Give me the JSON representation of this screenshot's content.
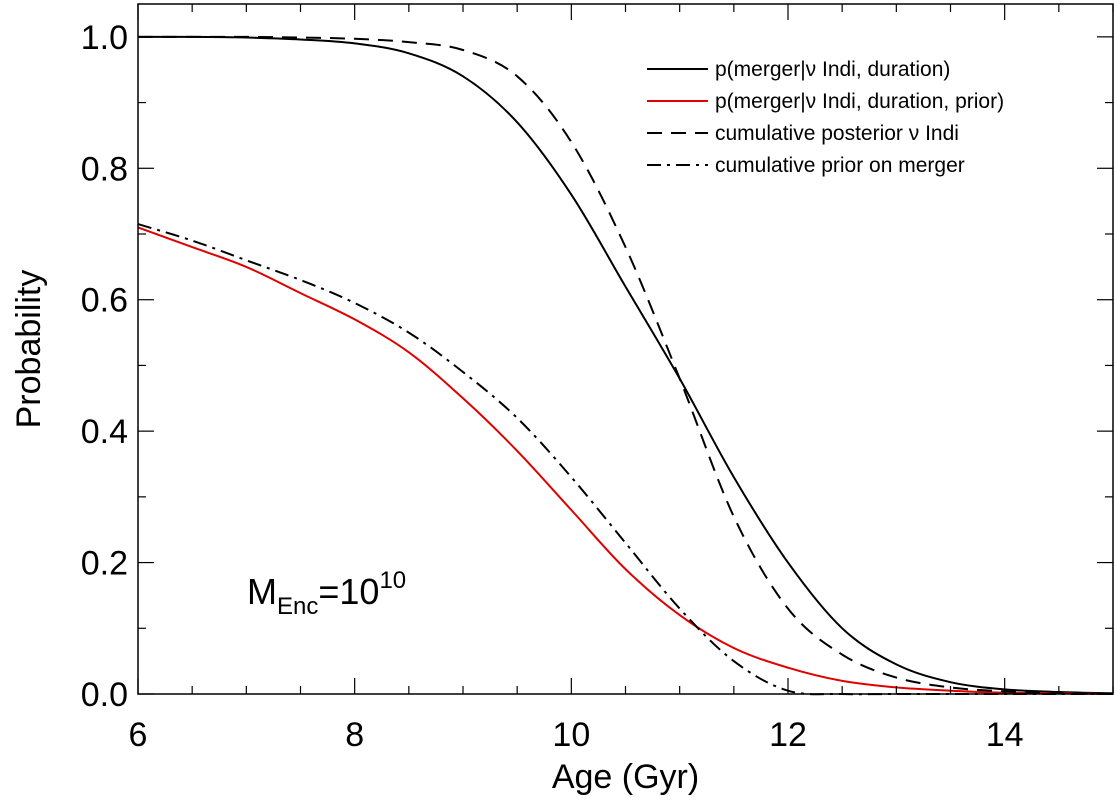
{
  "chart_data": {
    "type": "line",
    "xlabel": "Age (Gyr)",
    "ylabel": "Probability",
    "xlim": [
      6,
      15
    ],
    "ylim": [
      0,
      1.05
    ],
    "x_ticks": [
      6,
      8,
      10,
      12,
      14
    ],
    "x_tick_labels": [
      "6",
      "8",
      "10",
      "12",
      "14"
    ],
    "y_ticks": [
      0,
      0.2,
      0.4,
      0.6,
      0.8,
      1.0
    ],
    "y_tick_labels": [
      "0.0",
      "0.2",
      "0.4",
      "0.6",
      "0.8",
      "1.0"
    ],
    "legend_position": "top-right",
    "annotation": {
      "base": "M",
      "subscript": "Enc",
      "mid": "=10",
      "superscript": "10"
    },
    "series": [
      {
        "name": "p(merger|ν Indi, duration)",
        "color": "#000000",
        "style": "solid",
        "x": [
          6,
          6.5,
          7,
          7.5,
          8,
          8.5,
          9,
          9.5,
          10,
          10.5,
          11,
          11.5,
          12,
          12.5,
          13,
          13.5,
          14,
          14.5,
          15
        ],
        "y": [
          1.0,
          1.0,
          0.999,
          0.996,
          0.99,
          0.975,
          0.94,
          0.87,
          0.76,
          0.62,
          0.48,
          0.33,
          0.2,
          0.1,
          0.045,
          0.018,
          0.007,
          0.003,
          0.001
        ]
      },
      {
        "name": "p(merger|ν Indi, duration, prior)",
        "color": "#e00000",
        "style": "solid",
        "x": [
          6,
          6.5,
          7,
          7.5,
          8,
          8.5,
          9,
          9.5,
          10,
          10.5,
          11,
          11.5,
          12,
          12.5,
          13,
          13.5,
          14,
          14.5,
          15
        ],
        "y": [
          0.71,
          0.68,
          0.65,
          0.61,
          0.57,
          0.52,
          0.45,
          0.37,
          0.28,
          0.19,
          0.12,
          0.07,
          0.04,
          0.02,
          0.01,
          0.005,
          0.002,
          0.001,
          0.0
        ]
      },
      {
        "name": "cumulative posterior ν Indi",
        "color": "#000000",
        "style": "dashed",
        "x": [
          6,
          6.5,
          7,
          7.5,
          8,
          8.5,
          9,
          9.5,
          10,
          10.5,
          11,
          11.5,
          12,
          12.5,
          13,
          13.5,
          14,
          14.5,
          15
        ],
        "y": [
          1.0,
          1.0,
          1.0,
          0.999,
          0.997,
          0.992,
          0.98,
          0.94,
          0.84,
          0.68,
          0.48,
          0.27,
          0.13,
          0.06,
          0.025,
          0.01,
          0.004,
          0.001,
          0.0
        ]
      },
      {
        "name": "cumulative prior on merger",
        "color": "#000000",
        "style": "dashdot",
        "x": [
          6,
          6.5,
          7,
          7.5,
          8,
          8.5,
          9,
          9.5,
          10,
          10.5,
          11,
          11.5,
          12,
          12.5,
          13,
          13.5,
          14,
          14.5,
          15
        ],
        "y": [
          0.715,
          0.69,
          0.66,
          0.63,
          0.595,
          0.55,
          0.49,
          0.42,
          0.33,
          0.23,
          0.13,
          0.05,
          0.005,
          0.0,
          0.0,
          0.0,
          0.0,
          0.0,
          0.0
        ]
      }
    ]
  }
}
